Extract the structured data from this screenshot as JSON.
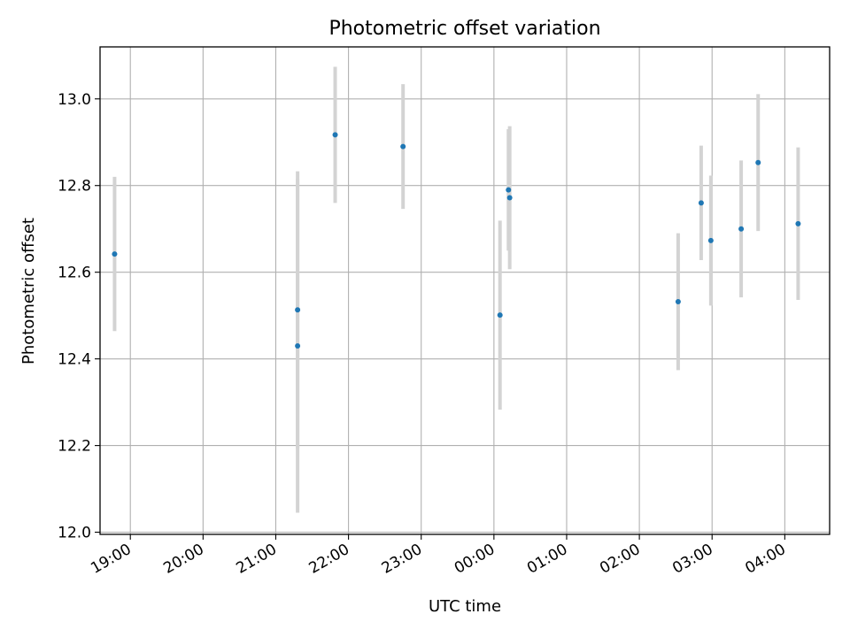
{
  "chart_data": {
    "type": "scatter",
    "title": "Photometric offset variation",
    "xlabel": "UTC time",
    "ylabel": "Photometric offset",
    "x_ticks": [
      "19:00",
      "20:00",
      "21:00",
      "22:00",
      "23:00",
      "00:00",
      "01:00",
      "02:00",
      "03:00",
      "04:00"
    ],
    "y_ticks": [
      "12.0",
      "12.2",
      "12.4",
      "12.6",
      "12.8",
      "13.0"
    ],
    "xlim": [
      "18:35",
      "04:37"
    ],
    "ylim": [
      11.995,
      13.12
    ],
    "grid": true,
    "points": [
      {
        "time": "18:47",
        "value": 12.642,
        "err": 0.178
      },
      {
        "time": "21:18",
        "value": 12.513,
        "err": 0.32
      },
      {
        "time": "21:18",
        "value": 12.43,
        "err": 0.385
      },
      {
        "time": "21:49",
        "value": 12.917,
        "err": 0.157
      },
      {
        "time": "22:45",
        "value": 12.89,
        "err": 0.144
      },
      {
        "time": "00:05",
        "value": 12.501,
        "err": 0.218
      },
      {
        "time": "00:12",
        "value": 12.79,
        "err": 0.14
      },
      {
        "time": "00:13",
        "value": 12.772,
        "err": 0.165
      },
      {
        "time": "02:32",
        "value": 12.532,
        "err": 0.158
      },
      {
        "time": "02:51",
        "value": 12.76,
        "err": 0.132
      },
      {
        "time": "02:59",
        "value": 12.673,
        "err": 0.15
      },
      {
        "time": "03:24",
        "value": 12.7,
        "err": 0.158
      },
      {
        "time": "03:38",
        "value": 12.853,
        "err": 0.158
      },
      {
        "time": "04:11",
        "value": 12.712,
        "err": 0.176
      }
    ],
    "colors": {
      "points": "#1f77b4",
      "errorbars": "#d3d3d3",
      "grid": "#b0b0b0"
    }
  }
}
